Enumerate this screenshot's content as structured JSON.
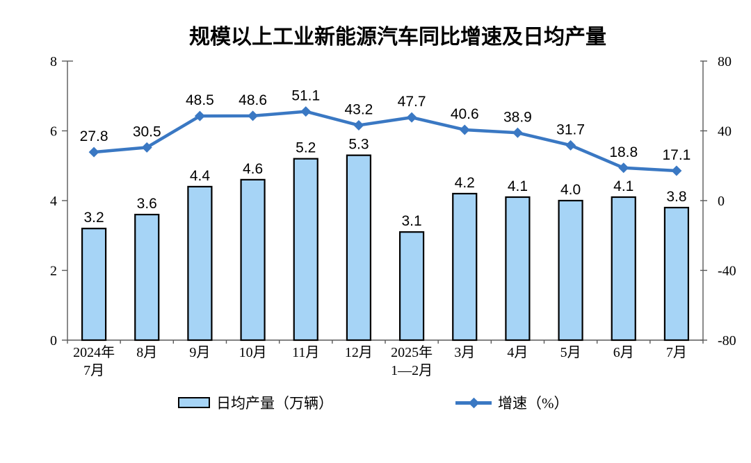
{
  "chart_data": {
    "type": "combo-bar-line",
    "title": "规模以上工业新能源汽车同比增速及日均产量",
    "categories": [
      "2024年\n7月",
      "8月",
      "9月",
      "10月",
      "11月",
      "12月",
      "2025年\n1—2月",
      "3月",
      "4月",
      "5月",
      "6月",
      "7月"
    ],
    "series": [
      {
        "name": "日均产量（万辆）",
        "type": "bar",
        "axis": "left",
        "values": [
          3.2,
          3.6,
          4.4,
          4.6,
          5.2,
          5.3,
          3.1,
          4.2,
          4.1,
          4.0,
          4.1,
          3.8
        ]
      },
      {
        "name": "增速（%）",
        "type": "line",
        "axis": "right",
        "values": [
          27.8,
          30.5,
          48.5,
          48.6,
          51.1,
          43.2,
          47.7,
          40.6,
          38.9,
          31.7,
          18.8,
          17.1
        ]
      }
    ],
    "axes": {
      "left": {
        "min": 0,
        "max": 8,
        "ticks": [
          0,
          2,
          4,
          6,
          8
        ]
      },
      "right": {
        "min": -80,
        "max": 80,
        "ticks": [
          -80,
          -40,
          0,
          40,
          80
        ]
      }
    },
    "grid": false,
    "legend_position": "bottom",
    "colors": {
      "bar_fill": "#A6D4F6",
      "bar_stroke": "#000000",
      "line": "#3A78C3",
      "axis": "#595959",
      "text": "#000000",
      "background": "#FFFFFF"
    }
  }
}
